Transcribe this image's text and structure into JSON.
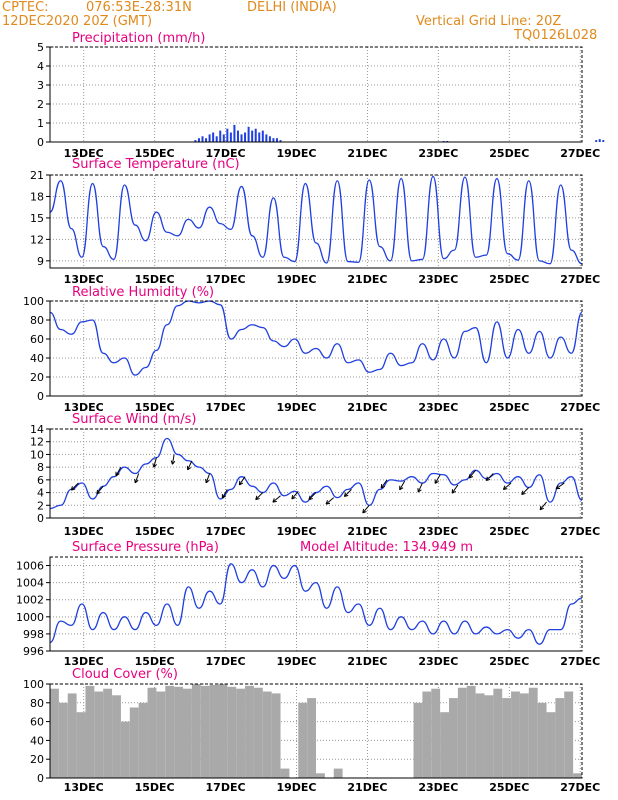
{
  "header": {
    "org": "CPTEC:",
    "coords": "076:53E-28:31N",
    "location": "DELHI (INDIA)",
    "run_time": "12DEC2020 20Z (GMT)",
    "grid_note": "Vertical Grid Line: 20Z",
    "model_code": "TQ0126L028"
  },
  "colors": {
    "header_text": "#e08a1e",
    "panel_title": "#e6007e",
    "series_line": "#1f3fe0",
    "cloud_fill": "#a9a9a9",
    "grid": "#999999"
  },
  "chart_data": [
    {
      "type": "bar",
      "title": "Precipitation (mm/h)",
      "x_ticks": [
        "13DEC",
        "15DEC",
        "17DEC",
        "19DEC",
        "21DEC",
        "23DEC",
        "25DEC",
        "27DEC"
      ],
      "ylim": [
        0,
        5
      ],
      "y_ticks": [
        "0",
        "1",
        "2",
        "3",
        "4",
        "5"
      ],
      "grid": true,
      "x": [
        4.1,
        4.2,
        4.3,
        4.4,
        4.5,
        4.6,
        4.7,
        4.8,
        4.9,
        5.0,
        5.1,
        5.2,
        5.3,
        5.4,
        5.5,
        5.6,
        5.7,
        5.8,
        5.9,
        6.0,
        6.1,
        6.2,
        6.3,
        6.4,
        6.5,
        11.1,
        11.2,
        15.4,
        15.5,
        15.6
      ],
      "values": [
        0.1,
        0.2,
        0.3,
        0.2,
        0.4,
        0.5,
        0.3,
        0.6,
        0.4,
        0.7,
        0.5,
        0.9,
        0.6,
        0.4,
        0.5,
        0.8,
        0.6,
        0.7,
        0.5,
        0.6,
        0.4,
        0.3,
        0.2,
        0.2,
        0.1,
        0.05,
        0.05,
        0.1,
        0.15,
        0.1
      ]
    },
    {
      "type": "line",
      "title": "Surface Temperature (nC)",
      "x_ticks": [
        "13DEC",
        "15DEC",
        "17DEC",
        "19DEC",
        "21DEC",
        "23DEC",
        "25DEC",
        "27DEC"
      ],
      "ylim": [
        8,
        21
      ],
      "y_ticks": [
        "9",
        "12",
        "15",
        "18",
        "21"
      ],
      "y_tick_values": [
        9,
        12,
        15,
        18,
        21
      ],
      "grid": true,
      "x": [
        0,
        0.3,
        0.6,
        0.9,
        1.2,
        1.5,
        1.8,
        2.1,
        2.4,
        2.7,
        3.0,
        3.3,
        3.6,
        3.9,
        4.2,
        4.5,
        4.8,
        5.1,
        5.4,
        5.7,
        6.0,
        6.3,
        6.6,
        6.9,
        7.2,
        7.5,
        7.8,
        8.1,
        8.4,
        8.7,
        9.0,
        9.3,
        9.6,
        9.9,
        10.2,
        10.5,
        10.8,
        11.1,
        11.4,
        11.7,
        12.0,
        12.3,
        12.6,
        12.9,
        13.2,
        13.5,
        13.8,
        14.1,
        14.4,
        14.7,
        15.0
      ],
      "values": [
        15.8,
        20.2,
        13.5,
        9.5,
        19.8,
        11.0,
        9.2,
        19.6,
        14.0,
        11.8,
        15.8,
        13.0,
        12.5,
        14.8,
        13.6,
        16.5,
        14.2,
        13.4,
        19.4,
        12.5,
        9.5,
        17.8,
        9.5,
        8.9,
        19.8,
        11.5,
        8.7,
        20.2,
        8.9,
        8.8,
        20.3,
        11.0,
        9.0,
        20.5,
        9.0,
        9.2,
        20.8,
        9.3,
        10.5,
        20.7,
        9.5,
        9.8,
        20.5,
        10.0,
        9.1,
        20.2,
        9.0,
        8.6,
        19.6,
        10.5,
        8.6
      ]
    },
    {
      "type": "line",
      "title": "Relative Humidity (%)",
      "x_ticks": [
        "13DEC",
        "15DEC",
        "17DEC",
        "19DEC",
        "21DEC",
        "23DEC",
        "25DEC",
        "27DEC"
      ],
      "ylim": [
        0,
        100
      ],
      "y_ticks": [
        "0",
        "20",
        "40",
        "60",
        "80",
        "100"
      ],
      "y_tick_values": [
        0,
        20,
        40,
        60,
        80,
        100
      ],
      "grid": true,
      "x": [
        0,
        0.3,
        0.6,
        0.9,
        1.2,
        1.5,
        1.8,
        2.1,
        2.4,
        2.7,
        3.0,
        3.3,
        3.6,
        3.9,
        4.2,
        4.5,
        4.8,
        5.1,
        5.4,
        5.7,
        6.0,
        6.3,
        6.6,
        6.9,
        7.2,
        7.5,
        7.8,
        8.1,
        8.4,
        8.7,
        9.0,
        9.3,
        9.6,
        9.9,
        10.2,
        10.5,
        10.8,
        11.1,
        11.4,
        11.7,
        12.0,
        12.3,
        12.6,
        12.9,
        13.2,
        13.5,
        13.8,
        14.1,
        14.4,
        14.7,
        15.0
      ],
      "values": [
        88,
        70,
        65,
        78,
        80,
        45,
        35,
        40,
        22,
        30,
        48,
        75,
        95,
        100,
        98,
        100,
        96,
        60,
        70,
        75,
        72,
        58,
        52,
        60,
        45,
        50,
        40,
        55,
        35,
        38,
        25,
        28,
        45,
        32,
        35,
        55,
        38,
        60,
        40,
        68,
        72,
        35,
        78,
        40,
        70,
        45,
        68,
        40,
        62,
        45,
        88
      ]
    },
    {
      "type": "line",
      "title": "Surface Wind (m/s)",
      "x_ticks": [
        "13DEC",
        "15DEC",
        "17DEC",
        "19DEC",
        "21DEC",
        "23DEC",
        "25DEC",
        "27DEC"
      ],
      "ylim": [
        0,
        14
      ],
      "y_ticks": [
        "0",
        "2",
        "4",
        "6",
        "8",
        "10",
        "12",
        "14"
      ],
      "y_tick_values": [
        0,
        2,
        4,
        6,
        8,
        10,
        12,
        14
      ],
      "grid": true,
      "x": [
        0,
        0.3,
        0.6,
        0.9,
        1.2,
        1.5,
        1.8,
        2.1,
        2.4,
        2.7,
        3.0,
        3.3,
        3.6,
        3.9,
        4.2,
        4.5,
        4.8,
        5.1,
        5.4,
        5.7,
        6.0,
        6.3,
        6.6,
        6.9,
        7.2,
        7.5,
        7.8,
        8.1,
        8.4,
        8.7,
        9.0,
        9.3,
        9.6,
        9.9,
        10.2,
        10.5,
        10.8,
        11.1,
        11.4,
        11.7,
        12.0,
        12.3,
        12.6,
        12.9,
        13.2,
        13.5,
        13.8,
        14.1,
        14.4,
        14.7,
        15.0
      ],
      "values": [
        1.5,
        2.0,
        4.5,
        5.5,
        3.0,
        5.0,
        6.5,
        8.0,
        7.0,
        8.5,
        9.5,
        12.5,
        10.0,
        9.0,
        8.0,
        7.0,
        3.0,
        4.5,
        6.5,
        5.0,
        4.0,
        5.5,
        3.5,
        4.2,
        2.5,
        4.0,
        5.0,
        3.2,
        4.5,
        5.5,
        2.0,
        4.5,
        6.0,
        5.8,
        6.5,
        5.5,
        7.0,
        6.8,
        5.2,
        6.0,
        7.5,
        6.2,
        7.0,
        5.5,
        6.5,
        4.8,
        6.8,
        2.5,
        5.5,
        6.5,
        2.8
      ],
      "arrows_x": [
        0.8,
        1.5,
        2.0,
        2.5,
        3.0,
        3.5,
        4.0,
        4.5,
        5.0,
        5.5,
        6.0,
        6.5,
        7.0,
        7.5,
        8.0,
        8.5,
        9.0,
        9.5,
        10.0,
        10.5,
        11.0,
        11.5,
        12.0,
        12.5,
        13.0,
        13.5,
        14.0,
        14.5
      ],
      "arrows_dir_deg": [
        45,
        50,
        60,
        70,
        75,
        80,
        65,
        70,
        60,
        55,
        45,
        40,
        50,
        45,
        40,
        45,
        50,
        55,
        60,
        65,
        60,
        55,
        50,
        45,
        40,
        45,
        50,
        35
      ]
    },
    {
      "type": "line",
      "title": "Surface Pressure (hPa)",
      "subtitle": "Model Altitude: 134.949 m",
      "x_ticks": [
        "13DEC",
        "15DEC",
        "17DEC",
        "19DEC",
        "21DEC",
        "23DEC",
        "25DEC",
        "27DEC"
      ],
      "ylim": [
        996,
        1007
      ],
      "y_ticks": [
        "996",
        "998",
        "1000",
        "1002",
        "1004",
        "1006"
      ],
      "y_tick_values": [
        996,
        998,
        1000,
        1002,
        1004,
        1006
      ],
      "grid": true,
      "x": [
        0,
        0.3,
        0.6,
        0.9,
        1.2,
        1.5,
        1.8,
        2.1,
        2.4,
        2.7,
        3.0,
        3.3,
        3.6,
        3.9,
        4.2,
        4.5,
        4.8,
        5.1,
        5.4,
        5.7,
        6.0,
        6.3,
        6.6,
        6.9,
        7.2,
        7.5,
        7.8,
        8.1,
        8.4,
        8.7,
        9.0,
        9.3,
        9.6,
        9.9,
        10.2,
        10.5,
        10.8,
        11.1,
        11.4,
        11.7,
        12.0,
        12.3,
        12.6,
        12.9,
        13.2,
        13.5,
        13.8,
        14.1,
        14.4,
        14.7,
        15.0
      ],
      "values": [
        997,
        999.5,
        999,
        1001.5,
        998.5,
        1000.5,
        998.5,
        1000,
        998.5,
        1000.5,
        999,
        1001.5,
        999,
        1003.5,
        1001,
        1003,
        1001.5,
        1006.2,
        1004,
        1005.5,
        1003.5,
        1006,
        1004.5,
        1006,
        1003,
        1004,
        1001,
        1003.5,
        1000.5,
        1001.5,
        999,
        1001,
        998.5,
        1000,
        998.5,
        999.5,
        998,
        999.5,
        998,
        999.5,
        998,
        998.8,
        998,
        998.5,
        997.5,
        998.5,
        996.8,
        998.5,
        998.5,
        1001.5,
        1002.2
      ]
    },
    {
      "type": "bar",
      "title": "Cloud Cover (%)",
      "x_ticks": [
        "13DEC",
        "15DEC",
        "17DEC",
        "19DEC",
        "21DEC",
        "23DEC",
        "25DEC",
        "27DEC"
      ],
      "ylim": [
        0,
        100
      ],
      "y_ticks": [
        "0",
        "20",
        "40",
        "60",
        "80",
        "100"
      ],
      "y_tick_values": [
        0,
        20,
        40,
        60,
        80,
        100
      ],
      "grid": true,
      "x": [
        0,
        0.25,
        0.5,
        0.75,
        1.0,
        1.25,
        1.5,
        1.75,
        2.0,
        2.25,
        2.5,
        2.75,
        3.0,
        3.25,
        3.5,
        3.75,
        4.0,
        4.25,
        4.5,
        4.75,
        5.0,
        5.25,
        5.5,
        5.75,
        6.0,
        6.25,
        6.5,
        6.75,
        7.0,
        7.25,
        7.5,
        7.75,
        8.0,
        8.25,
        8.5,
        8.75,
        9.0,
        9.25,
        9.5,
        9.75,
        10.0,
        10.25,
        10.5,
        10.75,
        11.0,
        11.25,
        11.5,
        11.75,
        12.0,
        12.25,
        12.5,
        12.75,
        13.0,
        13.25,
        13.5,
        13.75,
        14.0,
        14.25,
        14.5,
        14.75
      ],
      "values": [
        95,
        80,
        90,
        70,
        98,
        92,
        95,
        88,
        60,
        75,
        80,
        96,
        92,
        98,
        97,
        95,
        100,
        98,
        99,
        100,
        97,
        95,
        98,
        96,
        92,
        90,
        10,
        0,
        80,
        85,
        5,
        0,
        10,
        0,
        0,
        0,
        0,
        0,
        0,
        0,
        0,
        80,
        92,
        95,
        70,
        85,
        96,
        98,
        90,
        88,
        95,
        85,
        92,
        90,
        96,
        80,
        70,
        85,
        92,
        5
      ]
    }
  ]
}
